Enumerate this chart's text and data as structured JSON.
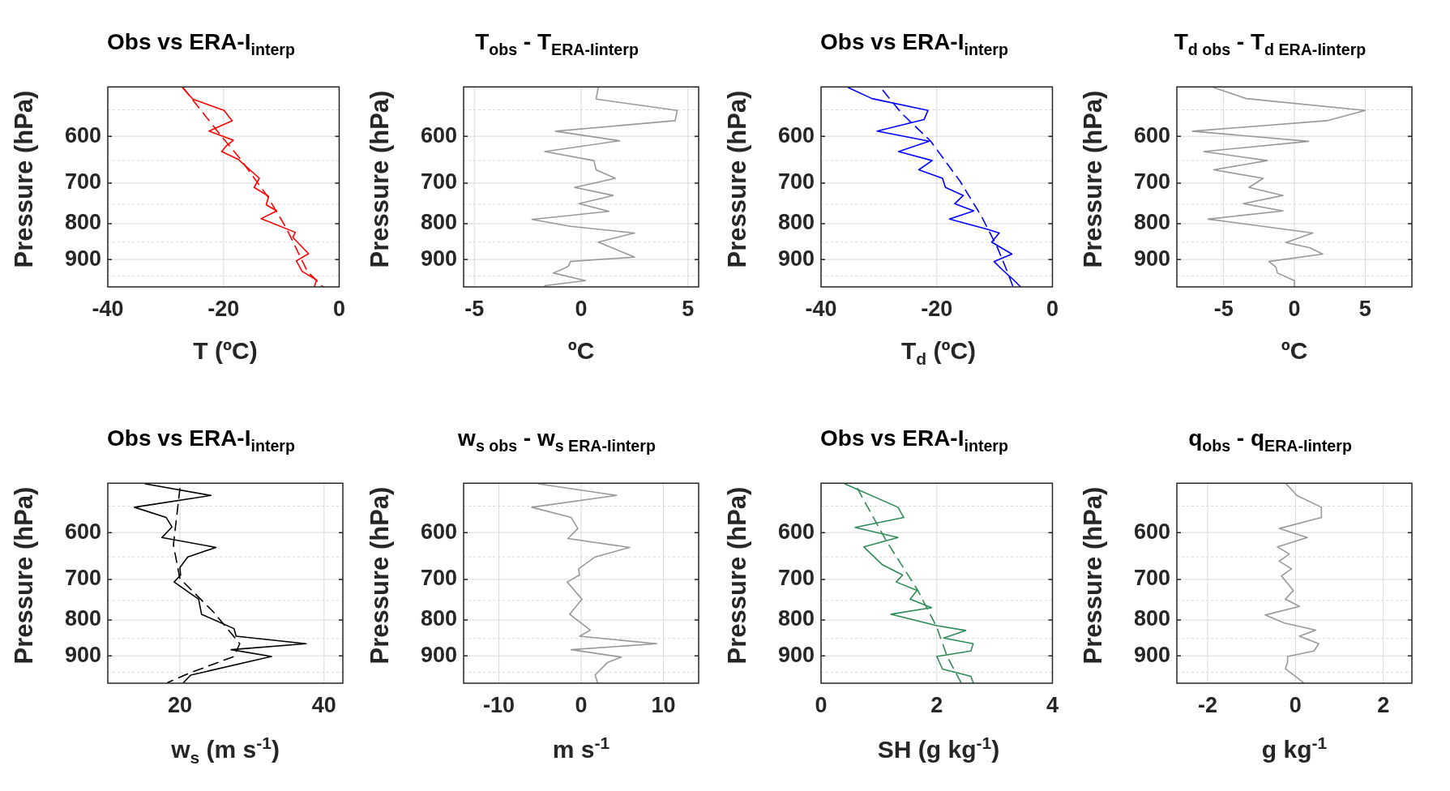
{
  "chart_data": [
    {
      "type": "line",
      "title": "Obs vs ERA-I$_{interp}$",
      "xlabel": "T (ºC)",
      "ylabel": "Pressure (hPa)",
      "log": "y",
      "grid": true,
      "marker": "none",
      "line_style": "solid",
      "xlim": [
        -40,
        0
      ],
      "xticks": [
        -40,
        -20,
        0
      ],
      "ylim": [
        985,
        510
      ],
      "yticks": [
        {
          "value": 550,
          "label": null
        },
        600,
        {
          "value": 650,
          "label": null
        },
        700,
        {
          "value": 750,
          "label": null
        },
        800,
        {
          "value": 850,
          "label": null
        },
        900,
        {
          "value": 950,
          "label": null
        }
      ],
      "series": [
        {
          "color": "#ff0000",
          "x": [
            -27.1,
            -25.3,
            -19.9,
            -18.5,
            -22.5,
            -18.3,
            -19.5,
            -20.3,
            -17.5,
            -13.8,
            -14.7,
            -12.2,
            -12.6,
            -10.8,
            -13.5,
            -7.6,
            -8.0,
            -5.3,
            -7.4,
            -6.4,
            -3.9,
            -4.3
          ],
          "values": [
            511,
            531,
            551,
            570,
            590,
            608,
            619,
            631,
            647,
            689,
            710,
            731,
            752,
            767,
            787,
            823,
            837,
            883,
            904,
            936,
            963,
            985
          ]
        },
        {
          "color": "#ff0000",
          "line_style": "dashed",
          "x": [
            -27.0,
            -20.7,
            -17.0,
            -12.4,
            -9.2,
            -5.5,
            -2.8
          ],
          "values": [
            511,
            595,
            648,
            731,
            810,
            936,
            985
          ]
        }
      ]
    },
    {
      "type": "line",
      "title": "T$_{obs}$ - T$_{ERA-I}$$_{interp}$",
      "xlabel": "ºC",
      "ylabel": "Pressure (hPa)",
      "log": "y",
      "grid": true,
      "marker": "none",
      "line_style": "solid",
      "xlim": [
        -5.5,
        5.5
      ],
      "xticks": [
        -5,
        0,
        5
      ],
      "ylim": [
        985,
        510
      ],
      "yticks": [
        {
          "value": 550,
          "label": null
        },
        600,
        {
          "value": 650,
          "label": null
        },
        700,
        {
          "value": 750,
          "label": null
        },
        800,
        {
          "value": 850,
          "label": null
        },
        900,
        {
          "value": 950,
          "label": null
        }
      ],
      "series": [
        {
          "color": "#999999",
          "x": [
            0.8,
            0.7,
            4.5,
            4.4,
            -1.2,
            1.8,
            -1.7,
            0.6,
            0.7,
            1.6,
            -0.3,
            1.5,
            -0.1,
            1.3,
            -2.3,
            -0.5,
            2.5,
            0.8,
            2.5,
            -0.5,
            -0.6,
            -0.8,
            -1.3,
            0.2,
            -1.7
          ],
          "values": [
            511,
            531,
            551,
            570,
            590,
            609,
            631,
            650,
            670,
            689,
            710,
            729,
            749,
            768,
            789,
            807,
            825,
            850,
            893,
            906,
            920,
            927,
            941,
            965,
            981
          ]
        }
      ]
    },
    {
      "type": "line",
      "title": "Obs vs ERA-I$_{interp}$",
      "xlabel": "T$_{d}$ (ºC)",
      "ylabel": "Pressure (hPa)",
      "log": "y",
      "grid": true,
      "marker": "none",
      "line_style": "solid",
      "xlim": [
        -40,
        0
      ],
      "xticks": [
        -40,
        -20,
        0
      ],
      "ylim": [
        985,
        510
      ],
      "yticks": [
        {
          "value": 550,
          "label": null
        },
        600,
        {
          "value": 650,
          "label": null
        },
        700,
        {
          "value": 750,
          "label": null
        },
        800,
        {
          "value": 850,
          "label": null
        },
        900,
        {
          "value": 950,
          "label": null
        }
      ],
      "series": [
        {
          "color": "#0000ff",
          "x": [
            -35.3,
            -31.2,
            -21.5,
            -22.2,
            -30.3,
            -21.3,
            -26.6,
            -20.8,
            -23.1,
            -19.0,
            -18.5,
            -15.4,
            -16.9,
            -13.6,
            -17.8,
            -11.2,
            -9.2,
            -10.5,
            -7.0,
            -10.1,
            -8.6,
            -6.8,
            -5.5
          ],
          "values": [
            511,
            530,
            551,
            568,
            590,
            610,
            631,
            650,
            670,
            689,
            710,
            729,
            749,
            767,
            788,
            815,
            825,
            850,
            884,
            906,
            932,
            961,
            985
          ]
        },
        {
          "color": "#0000ff",
          "line_style": "dashed",
          "x": [
            -29.3,
            -26.1,
            -21.1,
            -16.0,
            -12.3,
            -9.6,
            -7.7,
            -6.8
          ],
          "values": [
            516,
            556,
            609,
            695,
            780,
            862,
            941,
            985
          ]
        }
      ]
    },
    {
      "type": "line",
      "title": "T$_{d obs}$ - T$_{d ERA-I}$$_{interp}$",
      "xlabel": "ºC",
      "ylabel": "Pressure (hPa)",
      "log": "y",
      "grid": true,
      "marker": "none",
      "line_style": "solid",
      "xlim": [
        -8.3,
        8.3
      ],
      "xticks": [
        -5,
        0,
        5
      ],
      "ylim": [
        985,
        510
      ],
      "yticks": [
        {
          "value": 550,
          "label": null
        },
        600,
        {
          "value": 650,
          "label": null
        },
        700,
        {
          "value": 750,
          "label": null
        },
        800,
        {
          "value": 850,
          "label": null
        },
        900,
        {
          "value": 950,
          "label": null
        }
      ],
      "series": [
        {
          "color": "#999999",
          "x": [
            -5.7,
            -3.4,
            5.0,
            2.3,
            -7.2,
            1.0,
            -6.4,
            -1.9,
            -5.7,
            -2.2,
            -3.2,
            -0.8,
            -3.6,
            -0.8,
            -6.1,
            1.3,
            -0.6,
            1.1,
            2.0,
            -1.8,
            -1.3,
            -1.2,
            0.0,
            0.0
          ],
          "values": [
            511,
            530,
            551,
            570,
            590,
            610,
            631,
            650,
            670,
            689,
            710,
            729,
            749,
            767,
            788,
            825,
            851,
            866,
            884,
            906,
            923,
            941,
            965,
            985
          ]
        }
      ]
    },
    {
      "type": "line",
      "title": "Obs vs ERA-I$_{interp}$",
      "xlabel": "w$_{s}$ (m s$^{-1}$)",
      "ylabel": "Pressure (hPa)",
      "log": "y",
      "grid": true,
      "marker": "none",
      "line_style": "solid",
      "xlim": [
        10,
        42.6
      ],
      "xticks": [
        20,
        40
      ],
      "ylim": [
        985,
        510
      ],
      "yticks": [
        {
          "value": 550,
          "label": null
        },
        600,
        {
          "value": 650,
          "label": null
        },
        700,
        {
          "value": 750,
          "label": null
        },
        800,
        {
          "value": 850,
          "label": null
        },
        900,
        {
          "value": 950,
          "label": null
        }
      ],
      "series": [
        {
          "color": "#000000",
          "x": [
            15.2,
            24.3,
            13.7,
            18.1,
            18.9,
            17.5,
            25.0,
            21.1,
            20.0,
            20.1,
            19.2,
            22.6,
            23.0,
            27.5,
            27.8,
            37.5,
            27.1,
            32.7,
            21.5,
            20.5
          ],
          "values": [
            511,
            531,
            552,
            571,
            589,
            610,
            630,
            650,
            673,
            690,
            706,
            747,
            785,
            823,
            844,
            865,
            882,
            902,
            959,
            983
          ]
        },
        {
          "color": "#000000",
          "line_style": "dashed",
          "x": [
            20.0,
            19.1,
            20.0,
            24.7,
            28.3,
            27.5,
            21.3,
            18.3
          ],
          "values": [
            519,
            625,
            698,
            780,
            865,
            902,
            953,
            983
          ]
        }
      ]
    },
    {
      "type": "line",
      "title": "w$_{s obs}$ - w$_{s ERA-I}$$_{interp}$",
      "xlabel": "m s$^{-1}$",
      "ylabel": "Pressure (hPa)",
      "log": "y",
      "grid": true,
      "marker": "none",
      "line_style": "solid",
      "xlim": [
        -14.3,
        14.3
      ],
      "xticks": [
        -10,
        0,
        10
      ],
      "ylim": [
        985,
        510
      ],
      "yticks": [
        {
          "value": 550,
          "label": null
        },
        600,
        {
          "value": 650,
          "label": null
        },
        700,
        {
          "value": 750,
          "label": null
        },
        800,
        {
          "value": 850,
          "label": null
        },
        900,
        {
          "value": 950,
          "label": null
        }
      ],
      "series": [
        {
          "color": "#999999",
          "x": [
            -5.2,
            4.3,
            -6.0,
            -1.2,
            -0.4,
            -1.6,
            5.9,
            1.7,
            -0.3,
            -0.2,
            -1.7,
            0.1,
            -1.4,
            1.1,
            -0.2,
            9.2,
            -1.2,
            4.9,
            3.2,
            1.7,
            2.0
          ],
          "values": [
            511,
            531,
            552,
            571,
            592,
            612,
            630,
            650,
            676,
            690,
            706,
            747,
            785,
            827,
            844,
            865,
            882,
            904,
            920,
            959,
            983
          ]
        }
      ]
    },
    {
      "type": "line",
      "title": "Obs vs ERA-I$_{interp}$",
      "xlabel": "SH (g kg$^{-1}$)",
      "ylabel": "Pressure (hPa)",
      "log": "y",
      "grid": true,
      "marker": "none",
      "line_style": "solid",
      "xlim": [
        0,
        4
      ],
      "xticks": [
        0,
        2,
        4
      ],
      "ylim": [
        985,
        510
      ],
      "yticks": [
        {
          "value": 550,
          "label": null
        },
        600,
        {
          "value": 650,
          "label": null
        },
        700,
        {
          "value": 750,
          "label": null
        },
        800,
        {
          "value": 850,
          "label": null
        },
        900,
        {
          "value": 950,
          "label": null
        }
      ],
      "series": [
        {
          "color": "#2e8b57",
          "x": [
            0.41,
            1.33,
            1.43,
            0.59,
            1.33,
            0.74,
            1.06,
            1.41,
            1.3,
            1.66,
            1.54,
            1.91,
            1.21,
            2.0,
            2.5,
            2.12,
            2.63,
            2.59,
            2.0,
            2.1,
            2.59,
            2.63
          ],
          "values": [
            511,
            552,
            571,
            590,
            610,
            629,
            667,
            690,
            706,
            726,
            747,
            768,
            785,
            815,
            828,
            849,
            865,
            886,
            902,
            940,
            963,
            983
          ]
        },
        {
          "color": "#2e8b57",
          "line_style": "dashed",
          "x": [
            0.63,
            1.13,
            1.67,
            2.0,
            2.18,
            2.42
          ],
          "values": [
            519,
            617,
            725,
            819,
            902,
            983
          ]
        }
      ]
    },
    {
      "type": "line",
      "title": "q$_{obs}$ - q$_{ERA-I}$$_{interp}$",
      "xlabel": "g kg$^{-1}$",
      "ylabel": "Pressure (hPa)",
      "log": "y",
      "grid": true,
      "marker": "none",
      "line_style": "solid",
      "xlim": [
        -2.7,
        2.65
      ],
      "xticks": [
        -2,
        0,
        2
      ],
      "ylim": [
        985,
        510
      ],
      "yticks": [
        {
          "value": 550,
          "label": null
        },
        600,
        {
          "value": 650,
          "label": null
        },
        700,
        {
          "value": 750,
          "label": null
        },
        800,
        {
          "value": 850,
          "label": null
        },
        900,
        {
          "value": 950,
          "label": null
        }
      ],
      "series": [
        {
          "color": "#999999",
          "x": [
            -0.21,
            0.03,
            0.59,
            0.59,
            -0.37,
            0.27,
            -0.41,
            -0.14,
            -0.37,
            -0.09,
            -0.32,
            -0.05,
            -0.23,
            0.09,
            -0.69,
            -0.25,
            0.46,
            0.09,
            0.53,
            0.42,
            -0.18,
            -0.18,
            -0.23,
            0.18
          ],
          "values": [
            511,
            531,
            552,
            571,
            592,
            610,
            629,
            644,
            659,
            676,
            692,
            726,
            747,
            765,
            787,
            808,
            827,
            844,
            865,
            886,
            902,
            920,
            939,
            983
          ]
        }
      ]
    }
  ]
}
